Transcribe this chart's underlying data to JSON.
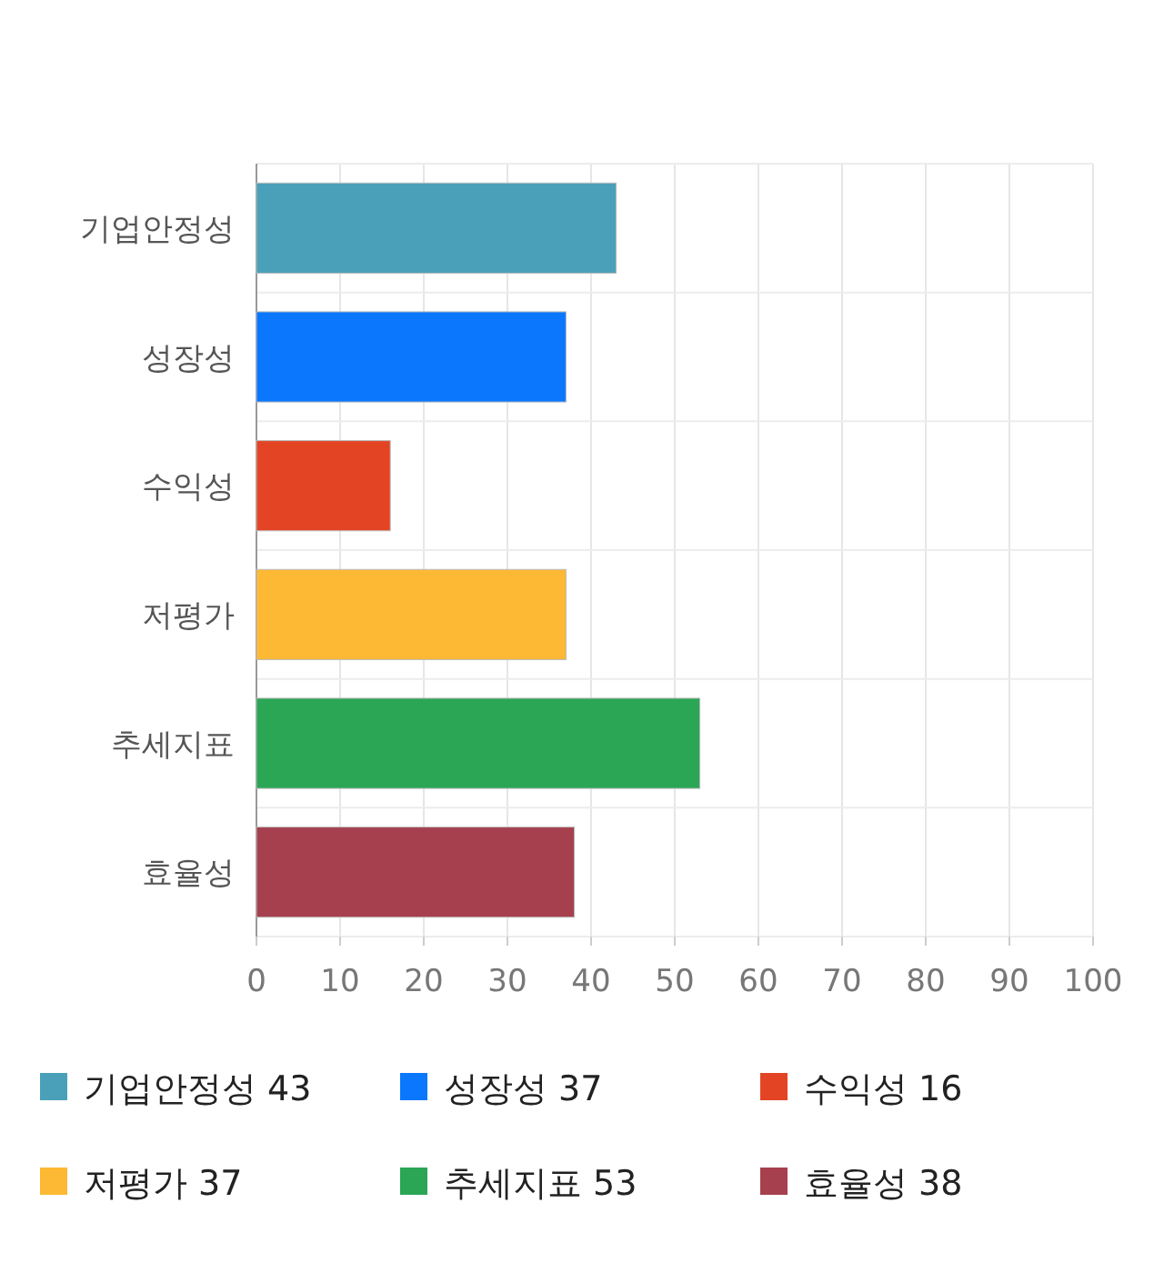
{
  "chart_data": {
    "type": "bar",
    "orientation": "horizontal",
    "categories": [
      "기업안정성",
      "성장성",
      "수익성",
      "저평가",
      "추세지표",
      "효율성"
    ],
    "series": [
      {
        "name": "기업안정성 43",
        "color": "#4aa0b9",
        "values": [
          43,
          null,
          null,
          null,
          null,
          null
        ]
      },
      {
        "name": "성장성 37",
        "color": "#0a77fd",
        "values": [
          null,
          37,
          null,
          null,
          null,
          null
        ]
      },
      {
        "name": "수익성 16",
        "color": "#e34524",
        "values": [
          null,
          null,
          16,
          null,
          null,
          null
        ]
      },
      {
        "name": "저평가 37",
        "color": "#fdb834",
        "values": [
          null,
          null,
          null,
          37,
          null,
          null
        ]
      },
      {
        "name": "추세지표 53",
        "color": "#2aa655",
        "values": [
          null,
          null,
          null,
          null,
          53,
          null
        ]
      },
      {
        "name": "효율성 38",
        "color": "#a6404f",
        "values": [
          null,
          null,
          null,
          null,
          null,
          38
        ]
      }
    ],
    "xlim": [
      0,
      100
    ],
    "xticks": [
      0,
      10,
      20,
      30,
      40,
      50,
      60,
      70,
      80,
      90,
      100
    ],
    "grid": true,
    "legend": "bottom"
  }
}
